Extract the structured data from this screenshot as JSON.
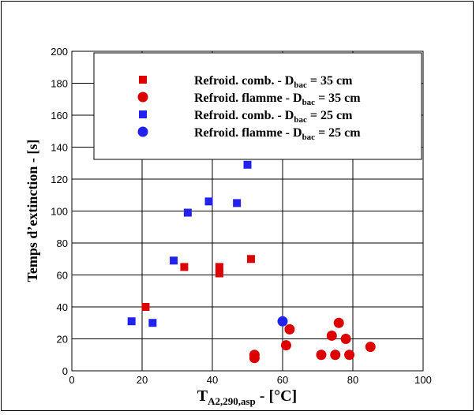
{
  "chart_data": {
    "type": "scatter",
    "xlim": [
      0,
      100
    ],
    "ylim": [
      0,
      200
    ],
    "x_ticks": [
      0,
      20,
      40,
      60,
      80,
      100
    ],
    "y_ticks": [
      0,
      20,
      40,
      60,
      80,
      100,
      120,
      140,
      160,
      180,
      200
    ],
    "grid": true,
    "legend_placement": "top",
    "xlabel": {
      "main": "T",
      "sub": "A2,290,asp",
      "tail": " - [°C]"
    },
    "ylabel": "Temps d’extinction - [s]",
    "series": [
      {
        "legend": {
          "pre": "Refroid. comb. - D",
          "sub": "bac",
          "post": " = 35 cm"
        },
        "marker": "square",
        "color": "#dd0000",
        "points": [
          [
            21,
            40
          ],
          [
            32,
            65
          ],
          [
            42,
            61
          ],
          [
            42,
            65
          ],
          [
            51,
            70
          ]
        ]
      },
      {
        "legend": {
          "pre": "Refroid. flamme - D",
          "sub": "bac",
          "post": " = 35 cm"
        },
        "marker": "circle",
        "color": "#dd0000",
        "points": [
          [
            52,
            8
          ],
          [
            52,
            10
          ],
          [
            61,
            16
          ],
          [
            62,
            26
          ],
          [
            71,
            10
          ],
          [
            74,
            22
          ],
          [
            75,
            10
          ],
          [
            76,
            30
          ],
          [
            78,
            20
          ],
          [
            79,
            10
          ],
          [
            85,
            15
          ]
        ]
      },
      {
        "legend": {
          "pre": "Refroid. comb. - D",
          "sub": "bac",
          "post": " = 25 cm"
        },
        "marker": "square",
        "color": "#2222ee",
        "points": [
          [
            17,
            31
          ],
          [
            23,
            30
          ],
          [
            29,
            69
          ],
          [
            33,
            99
          ],
          [
            39,
            106
          ],
          [
            47,
            105
          ],
          [
            50,
            129
          ]
        ]
      },
      {
        "legend": {
          "pre": "Refroid. flamme - D",
          "sub": "bac",
          "post": " = 25 cm"
        },
        "marker": "circle",
        "color": "#2222ee",
        "points": [
          [
            60,
            31
          ]
        ]
      }
    ]
  }
}
